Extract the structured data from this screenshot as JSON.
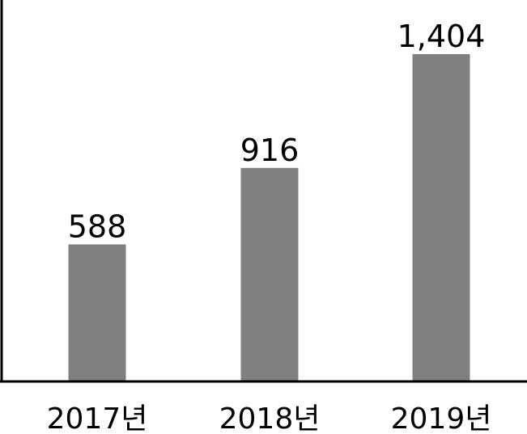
{
  "chart_data": {
    "type": "bar",
    "categories": [
      "2017년",
      "2018년",
      "2019년"
    ],
    "values": [
      588,
      916,
      1404
    ],
    "value_labels": [
      "588",
      "916",
      "1,404"
    ],
    "title": "",
    "xlabel": "",
    "ylabel": "",
    "ylim": [
      0,
      1404
    ],
    "grid": false,
    "legend": "none",
    "colors": {
      "bar": "#808080",
      "axis": "#000000",
      "text": "#000000"
    }
  }
}
